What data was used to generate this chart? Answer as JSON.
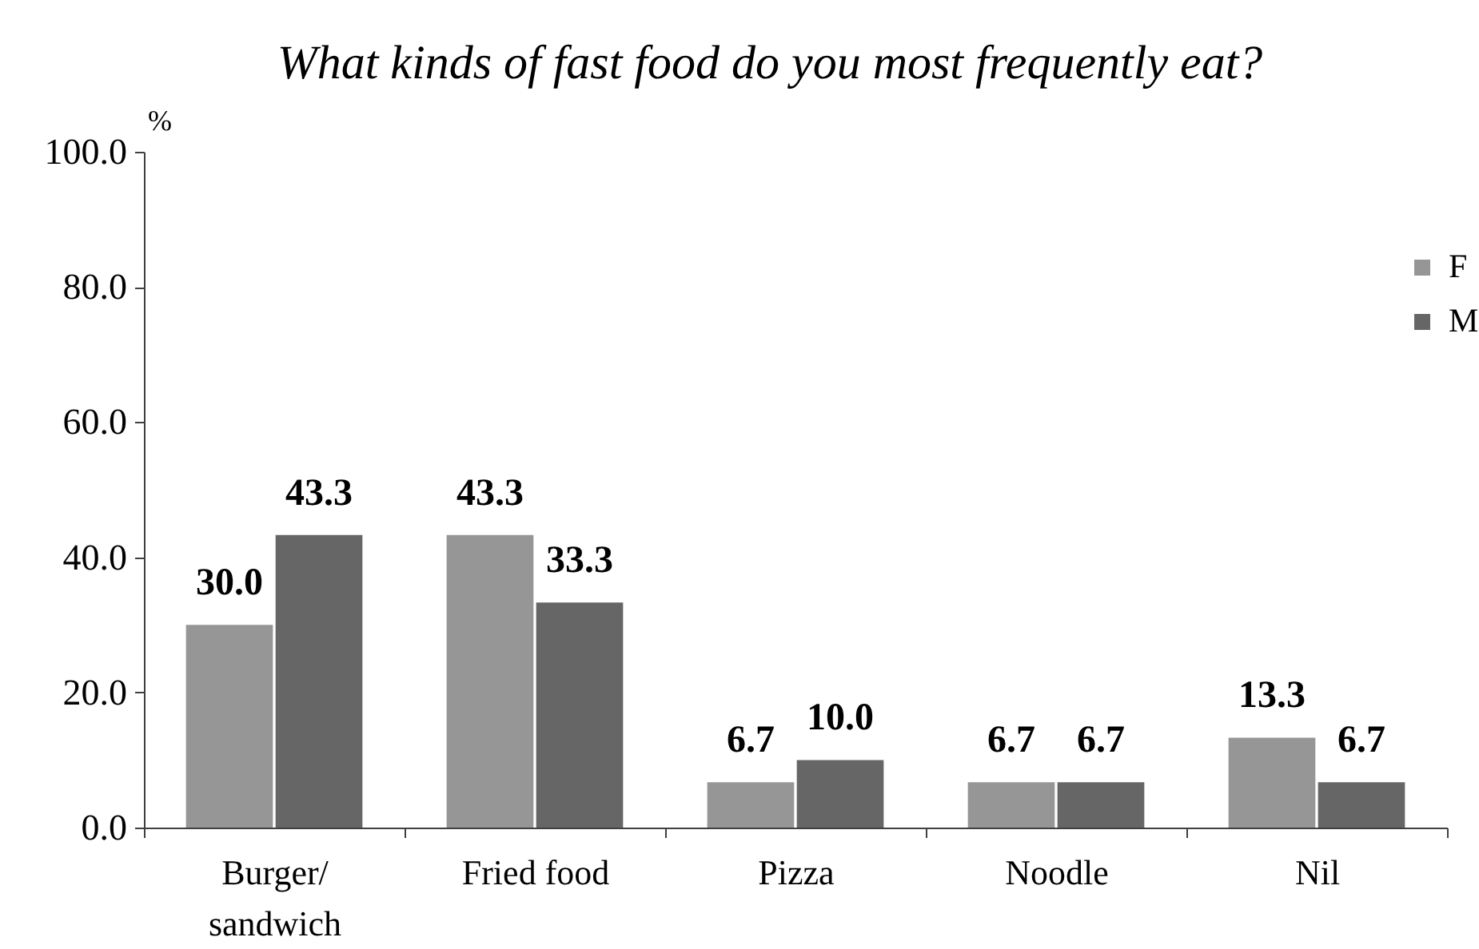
{
  "chart_data": {
    "type": "bar",
    "title": "What kinds of fast food do you most frequently eat?",
    "ylabel": "%",
    "categories": [
      "Burger/sandwich",
      "Fried food",
      "Pizza",
      "Noodle",
      "Nil"
    ],
    "series": [
      {
        "name": "F",
        "color": "#969696",
        "values": [
          30.0,
          43.3,
          6.7,
          6.7,
          13.3
        ],
        "value_labels": [
          "30.0",
          "43.3",
          "6.7",
          "6.7",
          "13.3"
        ]
      },
      {
        "name": "M",
        "color": "#666666",
        "values": [
          43.3,
          33.3,
          10.0,
          6.7,
          6.7
        ],
        "value_labels": [
          "43.3",
          "33.3",
          "10.0",
          "6.7",
          "6.7"
        ]
      }
    ],
    "ylim": [
      0,
      100
    ],
    "yticks": [
      {
        "value": 0,
        "label": "0.0"
      },
      {
        "value": 20,
        "label": "20.0"
      },
      {
        "value": 40,
        "label": "40.0"
      },
      {
        "value": 60,
        "label": "60.0"
      },
      {
        "value": 80,
        "label": "80.0"
      },
      {
        "value": 100,
        "label": "100.0"
      }
    ],
    "legend": "top right"
  }
}
